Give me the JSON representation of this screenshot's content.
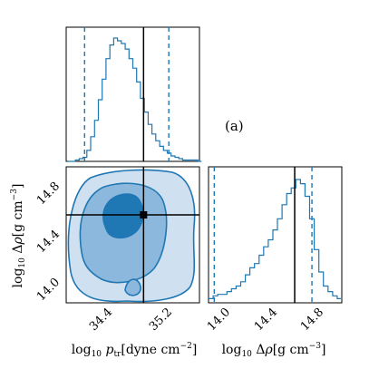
{
  "colors": {
    "accent": "#1f77b4",
    "truth": "#000000",
    "fill_levels": [
      "#cfe0f0",
      "#8db8dd",
      "#1f77b4"
    ]
  },
  "panel_tag": "(a)",
  "chart_data": [
    {
      "type": "histogram",
      "panel": "top-left",
      "parameter": "log10 p_tr",
      "x": [
        33.9,
        34.0,
        34.05,
        34.1,
        34.15,
        34.2,
        34.25,
        34.3,
        34.35,
        34.4,
        34.45,
        34.5,
        34.55,
        34.6,
        34.65,
        34.7,
        34.75,
        34.8,
        34.85,
        34.9,
        34.95,
        35.0,
        35.05,
        35.1,
        35.15,
        35.2,
        35.25,
        35.3,
        35.35,
        35.4,
        35.5,
        35.6
      ],
      "values": [
        0,
        1,
        2,
        3,
        8,
        18,
        30,
        45,
        60,
        75,
        85,
        90,
        88,
        86,
        82,
        75,
        68,
        58,
        46,
        36,
        27,
        20,
        15,
        11,
        8,
        6,
        4,
        3,
        2,
        1,
        1,
        0
      ],
      "xlim": [
        33.88,
        35.62
      ],
      "quantiles": [
        34.12,
        35.22
      ],
      "truth": 34.89
    },
    {
      "type": "contour",
      "panel": "bottom-left",
      "xlim": [
        33.88,
        35.62
      ],
      "ylim": [
        13.92,
        15.08
      ],
      "x_ticks": [
        "34.4",
        "35.2"
      ],
      "y_ticks": [
        "14.0",
        "14.4",
        "14.8"
      ],
      "xlabel": "log10 p_tr [dyne cm^-2]",
      "ylabel": "log10 Δρ [g cm^-3]",
      "truth": {
        "x": 34.89,
        "y": 14.67
      }
    },
    {
      "type": "histogram",
      "panel": "bottom-right",
      "parameter": "log10 Δρ",
      "x": [
        13.92,
        13.96,
        14.0,
        14.04,
        14.08,
        14.12,
        14.16,
        14.2,
        14.24,
        14.28,
        14.32,
        14.36,
        14.4,
        14.44,
        14.48,
        14.52,
        14.56,
        14.6,
        14.64,
        14.68,
        14.72,
        14.76,
        14.8,
        14.84,
        14.88,
        14.92,
        14.96,
        15.0,
        15.04
      ],
      "values": [
        3,
        5,
        6,
        6,
        8,
        10,
        12,
        15,
        20,
        25,
        28,
        34,
        40,
        45,
        52,
        60,
        70,
        78,
        82,
        88,
        85,
        76,
        60,
        38,
        22,
        12,
        8,
        5,
        3
      ],
      "xlim": [
        13.92,
        15.08
      ],
      "x_ticks": [
        "14.0",
        "14.4",
        "14.8"
      ],
      "quantiles": [
        13.97,
        14.82
      ],
      "truth": 14.67,
      "xlabel": "log10 Δρ [g cm^-3]"
    }
  ]
}
